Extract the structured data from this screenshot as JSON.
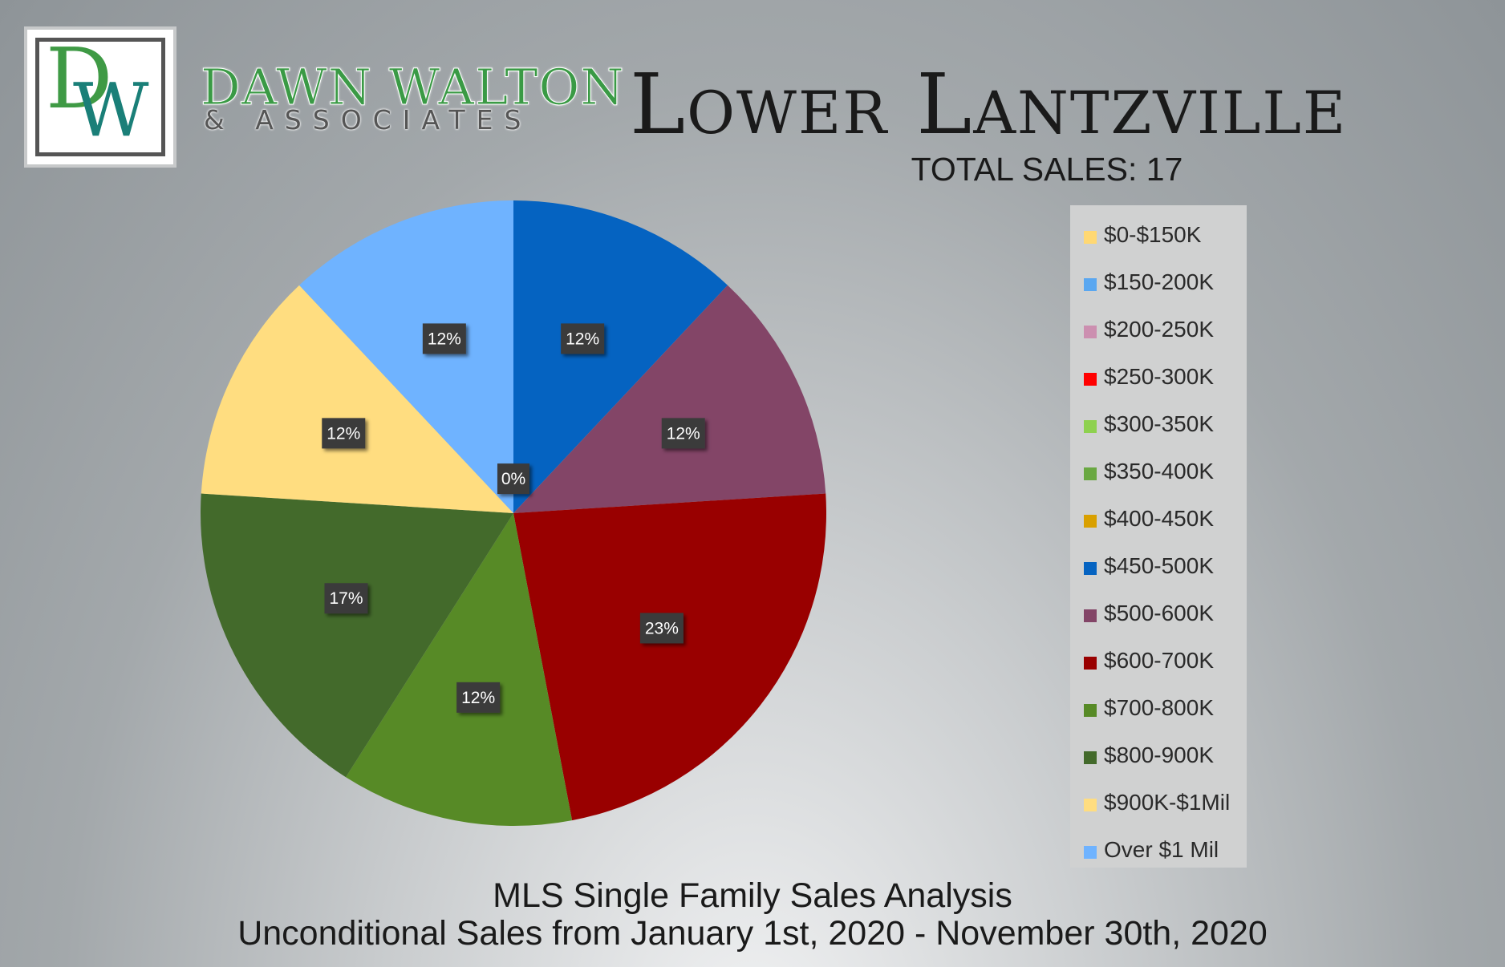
{
  "brand": {
    "monogram_d": "D",
    "monogram_w": "W",
    "name": "DAWN WALTON",
    "subtitle": "& ASSOCIATES"
  },
  "title": "Lower Lantzville",
  "total_sales": "TOTAL SALES: 17",
  "footer": {
    "line1": "MLS Single Family Sales Analysis",
    "line2": "Unconditional Sales from January 1st, 2020 - November 30th, 2020"
  },
  "chart_data": {
    "type": "pie",
    "title": "Lower Lantzville",
    "subtitle": "TOTAL SALES: 17",
    "legend_position": "right",
    "slices": [
      {
        "name": "$0-$150K",
        "value": 0,
        "label": "",
        "color": "#ffd873"
      },
      {
        "name": "$150-200K",
        "value": 0,
        "label": "",
        "color": "#5aa7f0"
      },
      {
        "name": "$200-250K",
        "value": 0,
        "label": "",
        "color": "#cc8fb0"
      },
      {
        "name": "$250-300K",
        "value": 0,
        "label": "",
        "color": "#ff0000"
      },
      {
        "name": "$300-350K",
        "value": 0,
        "label": "",
        "color": "#8ed14f"
      },
      {
        "name": "$350-400K",
        "value": 0,
        "label": "",
        "color": "#6aa842"
      },
      {
        "name": "$400-450K",
        "value": 0,
        "label": "0%",
        "color": "#d9a000"
      },
      {
        "name": "$450-500K",
        "value": 12,
        "label": "12%",
        "color": "#0563c1"
      },
      {
        "name": "$500-600K",
        "value": 12,
        "label": "12%",
        "color": "#834567"
      },
      {
        "name": "$600-700K",
        "value": 23,
        "label": "23%",
        "color": "#990000"
      },
      {
        "name": "$700-800K",
        "value": 12,
        "label": "12%",
        "color": "#578a26"
      },
      {
        "name": "$800-900K",
        "value": 17,
        "label": "17%",
        "color": "#436a2b"
      },
      {
        "name": "$900K-$1Mil",
        "value": 12,
        "label": "12%",
        "color": "#ffdd80"
      },
      {
        "name": "Over $1 Mil",
        "value": 12,
        "label": "12%",
        "color": "#6fb3ff"
      }
    ]
  }
}
